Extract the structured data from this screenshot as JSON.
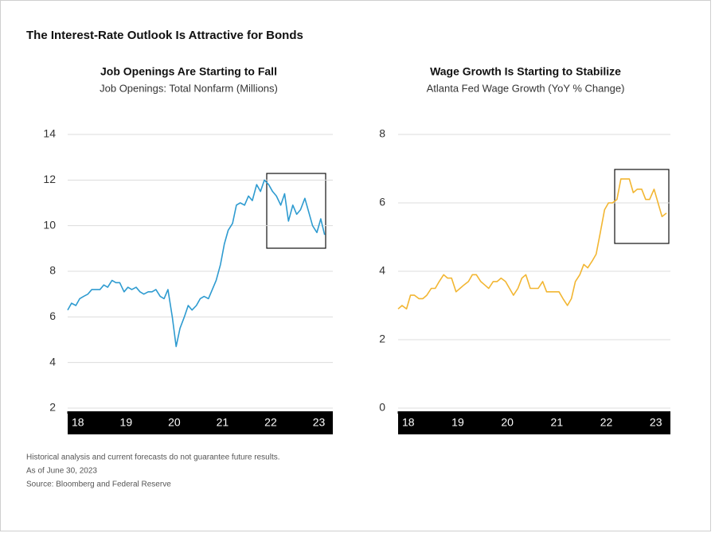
{
  "title": "The Interest-Rate Outlook Is Attractive for Bonds",
  "notes": [
    "Historical analysis and current forecasts do not guarantee future results.",
    "As of June 30, 2023",
    "Source: Bloomberg and Federal Reserve"
  ],
  "chart_data": [
    {
      "type": "line",
      "title": "Job Openings Are Starting to Fall",
      "subtitle": "Job Openings: Total Nonfarm (Millions)",
      "color": "#2e9bd0",
      "grid": true,
      "xlim": [
        2018,
        2023.5
      ],
      "xticks": [
        {
          "value": 2018,
          "label": "18"
        },
        {
          "value": 2019,
          "label": "19"
        },
        {
          "value": 2020,
          "label": "20"
        },
        {
          "value": 2021,
          "label": "21"
        },
        {
          "value": 2022,
          "label": "22"
        },
        {
          "value": 2023,
          "label": "23"
        }
      ],
      "ylim": [
        2,
        14
      ],
      "yticks": [
        2,
        4,
        6,
        8,
        10,
        12,
        14
      ],
      "x": [
        2018,
        2018.08,
        2018.17,
        2018.25,
        2018.33,
        2018.42,
        2018.5,
        2018.58,
        2018.67,
        2018.75,
        2018.83,
        2018.92,
        2019,
        2019.08,
        2019.17,
        2019.25,
        2019.33,
        2019.42,
        2019.5,
        2019.58,
        2019.67,
        2019.75,
        2019.83,
        2019.92,
        2020,
        2020.08,
        2020.17,
        2020.25,
        2020.33,
        2020.42,
        2020.5,
        2020.58,
        2020.67,
        2020.75,
        2020.83,
        2020.92,
        2021,
        2021.08,
        2021.17,
        2021.25,
        2021.33,
        2021.42,
        2021.5,
        2021.58,
        2021.67,
        2021.75,
        2021.83,
        2021.92,
        2022,
        2022.08,
        2022.17,
        2022.25,
        2022.33,
        2022.42,
        2022.5,
        2022.58,
        2022.67,
        2022.75,
        2022.83,
        2022.92,
        2023,
        2023.08,
        2023.17,
        2023.25,
        2023.33
      ],
      "values": [
        6.3,
        6.6,
        6.5,
        6.8,
        6.9,
        7.0,
        7.2,
        7.2,
        7.2,
        7.4,
        7.3,
        7.6,
        7.5,
        7.5,
        7.1,
        7.3,
        7.2,
        7.3,
        7.1,
        7.0,
        7.1,
        7.1,
        7.2,
        6.9,
        6.8,
        7.2,
        6.0,
        4.7,
        5.5,
        6.0,
        6.5,
        6.3,
        6.5,
        6.8,
        6.9,
        6.8,
        7.2,
        7.6,
        8.3,
        9.2,
        9.8,
        10.1,
        10.9,
        11.0,
        10.9,
        11.3,
        11.1,
        11.8,
        11.5,
        12.0,
        11.8,
        11.5,
        11.3,
        10.9,
        11.4,
        10.2,
        10.9,
        10.5,
        10.7,
        11.2,
        10.6,
        10.0,
        9.7,
        10.3,
        9.6
      ]
    },
    {
      "type": "line",
      "title": "Wage Growth Is Starting to Stabilize",
      "subtitle": "Atlanta Fed Wage Growth (YoY % Change)",
      "color": "#f2b632",
      "grid": true,
      "xlim": [
        2018,
        2023.5
      ],
      "xticks": [
        {
          "value": 2018,
          "label": "18"
        },
        {
          "value": 2019,
          "label": "19"
        },
        {
          "value": 2020,
          "label": "20"
        },
        {
          "value": 2021,
          "label": "21"
        },
        {
          "value": 2022,
          "label": "22"
        },
        {
          "value": 2023,
          "label": "23"
        }
      ],
      "ylim": [
        0,
        8
      ],
      "yticks": [
        0,
        2,
        4,
        6,
        8
      ],
      "x": [
        2018,
        2018.08,
        2018.17,
        2018.25,
        2018.33,
        2018.42,
        2018.5,
        2018.58,
        2018.67,
        2018.75,
        2018.83,
        2018.92,
        2019,
        2019.08,
        2019.17,
        2019.25,
        2019.33,
        2019.42,
        2019.5,
        2019.58,
        2019.67,
        2019.75,
        2019.83,
        2019.92,
        2020,
        2020.08,
        2020.17,
        2020.25,
        2020.33,
        2020.42,
        2020.5,
        2020.58,
        2020.67,
        2020.75,
        2020.83,
        2020.92,
        2021,
        2021.08,
        2021.17,
        2021.25,
        2021.33,
        2021.42,
        2021.5,
        2021.58,
        2021.67,
        2021.75,
        2021.83,
        2021.92,
        2022,
        2022.08,
        2022.17,
        2022.25,
        2022.33,
        2022.42,
        2022.5,
        2022.58,
        2022.67,
        2022.75,
        2022.83,
        2022.92,
        2023,
        2023.08,
        2023.17,
        2023.25,
        2023.33,
        2023.42
      ],
      "values": [
        2.9,
        3.0,
        2.9,
        3.3,
        3.3,
        3.2,
        3.2,
        3.3,
        3.5,
        3.5,
        3.7,
        3.9,
        3.8,
        3.8,
        3.4,
        3.5,
        3.6,
        3.7,
        3.9,
        3.9,
        3.7,
        3.6,
        3.5,
        3.7,
        3.7,
        3.8,
        3.7,
        3.5,
        3.3,
        3.5,
        3.8,
        3.9,
        3.5,
        3.5,
        3.5,
        3.7,
        3.4,
        3.4,
        3.4,
        3.4,
        3.2,
        3.0,
        3.2,
        3.7,
        3.9,
        4.2,
        4.1,
        4.3,
        4.5,
        5.1,
        5.8,
        6.0,
        6.0,
        6.1,
        6.7,
        6.7,
        6.7,
        6.3,
        6.4,
        6.4,
        6.1,
        6.1,
        6.4,
        6.0,
        5.6,
        5.7
      ]
    }
  ]
}
